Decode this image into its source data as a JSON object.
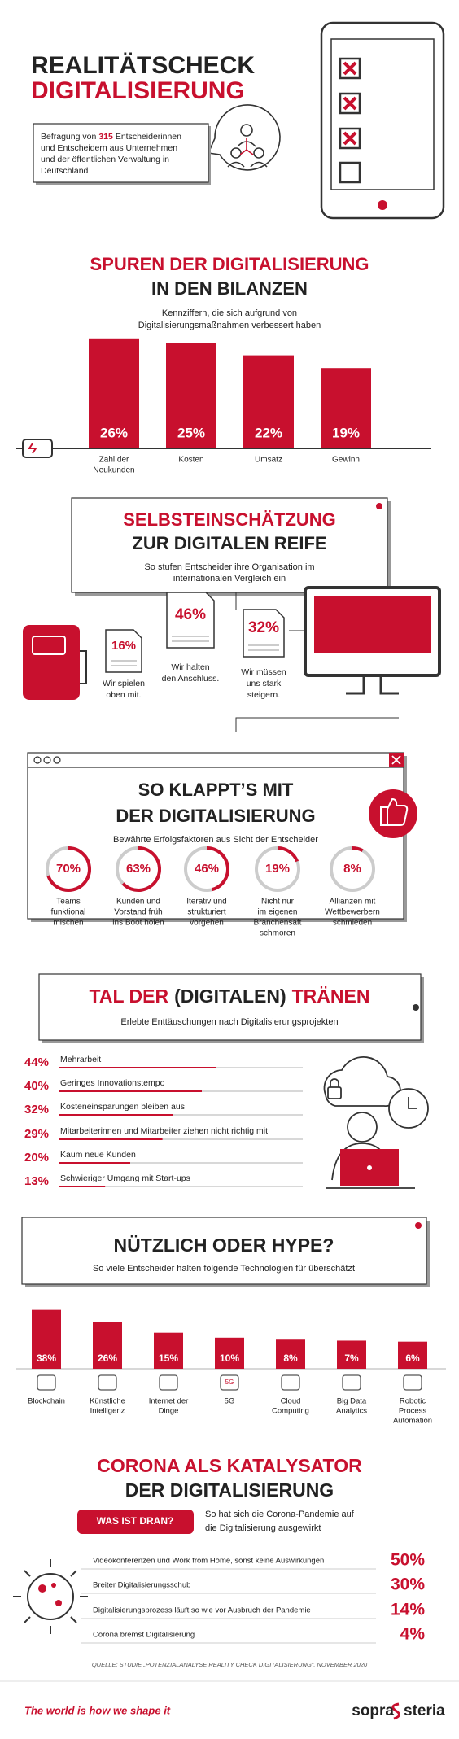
{
  "header": {
    "title_line1": "REALITÄTSCHECK",
    "title_line2": "DIGITALISIERUNG",
    "intro_start": "Befragung von",
    "intro_number": "315",
    "intro_end": "Entscheiderinnen",
    "intro_lines": [
      "und Entscheidern aus Unternehmen",
      "und der öffentlichen Verwaltung in",
      "Deutschland"
    ]
  },
  "balance": {
    "title": [
      "SPUREN DER DIGITALISIERUNG",
      "IN DEN BILANZEN"
    ],
    "subtitle": [
      "Kennziffern, die sich aufgrund von",
      "Digitalisierungsmaßnahmen verbessert haben"
    ],
    "items": [
      {
        "label": [
          "Zahl der",
          "Neukunden"
        ],
        "value": 26,
        "value_label": "26%"
      },
      {
        "label": [
          "Kosten"
        ],
        "value": 25,
        "value_label": "25%"
      },
      {
        "label": [
          "Umsatz"
        ],
        "value": 22,
        "value_label": "22%"
      },
      {
        "label": [
          "Gewinn"
        ],
        "value": 19,
        "value_label": "19%"
      }
    ]
  },
  "self_assessment": {
    "title": [
      "SELBSTEINSCHÄTZUNG",
      "ZUR DIGITALEN REIFE"
    ],
    "subtitle": [
      "So stufen Entscheider ihre Organisation im",
      "internationalen Vergleich ein"
    ],
    "items": [
      {
        "value_label": "16%",
        "caption": [
          "Wir spielen",
          "oben mit."
        ]
      },
      {
        "value_label": "46%",
        "caption": [
          "Wir halten",
          "den Anschluss."
        ]
      },
      {
        "value_label": "32%",
        "caption": [
          "Wir müssen",
          "uns stark",
          "steigern."
        ]
      }
    ]
  },
  "success": {
    "title": [
      "SO KLAPPT’S MIT",
      "DER DIGITALISIERUNG"
    ],
    "subtitle": "Bewährte Erfolgsfaktoren aus Sicht der Entscheider",
    "items": [
      {
        "value": 70,
        "value_label": "70%",
        "caption": [
          "Teams",
          "funktional",
          "mischen"
        ]
      },
      {
        "value": 63,
        "value_label": "63%",
        "caption": [
          "Kunden und",
          "Vorstand früh",
          "ins Boot holen"
        ]
      },
      {
        "value": 46,
        "value_label": "46%",
        "caption": [
          "Iterativ und",
          "strukturiert",
          "vorgehen"
        ]
      },
      {
        "value": 19,
        "value_label": "19%",
        "caption": [
          "Nicht nur",
          "im eigenen",
          "Branchensaft",
          "schmoren"
        ]
      },
      {
        "value": 8,
        "value_label": "8%",
        "caption": [
          "Allianzen mit",
          "Wettbewerbern",
          "schmieden"
        ]
      }
    ]
  },
  "tears": {
    "title_start": "TAL DER",
    "title_middle": "(DIGITALEN)",
    "title_end": "TRÄNEN",
    "subtitle": "Erlebte Enttäuschungen nach Digitalisierungsprojekten",
    "items": [
      {
        "label": "Mehrarbeit",
        "value": 44,
        "value_label": "44%"
      },
      {
        "label": "Geringes Innovationstempo",
        "value": 40,
        "value_label": "40%"
      },
      {
        "label": "Kosteneinsparungen bleiben aus",
        "value": 32,
        "value_label": "32%"
      },
      {
        "label": "Mitarbeiterinnen und Mitarbeiter ziehen nicht richtig mit",
        "value": 29,
        "value_label": "29%"
      },
      {
        "label": "Kaum neue Kunden",
        "value": 20,
        "value_label": "20%"
      },
      {
        "label": "Schwieriger Umgang mit Start-ups",
        "value": 13,
        "value_label": "13%"
      }
    ]
  },
  "hype": {
    "title": "NÜTZLICH ODER HYPE?",
    "subtitle": "So viele Entscheider halten folgende Technologien für überschätzt",
    "items": [
      {
        "label": [
          "Blockchain"
        ],
        "value": 38,
        "value_label": "38%"
      },
      {
        "label": [
          "Künstliche",
          "Intelligenz"
        ],
        "value": 26,
        "value_label": "26%"
      },
      {
        "label": [
          "Internet der",
          "Dinge"
        ],
        "value": 15,
        "value_label": "15%"
      },
      {
        "label": [
          "5G"
        ],
        "value": 10,
        "value_label": "10%",
        "icon_text": "5G"
      },
      {
        "label": [
          "Cloud",
          "Computing"
        ],
        "value": 8,
        "value_label": "8%"
      },
      {
        "label": [
          "Big Data",
          "Analytics"
        ],
        "value": 7,
        "value_label": "7%"
      },
      {
        "label": [
          "Robotic",
          "Process",
          "Automation"
        ],
        "value": 6,
        "value_label": "6%"
      }
    ]
  },
  "corona": {
    "title": [
      "CORONA ALS KATALYSATOR",
      "DER DIGITALISIERUNG"
    ],
    "badge": "WAS IST DRAN?",
    "intro": [
      "So hat sich die Corona-Pandemie auf",
      "die Digitalisierung ausgewirkt"
    ],
    "items": [
      {
        "label": "Videokonferenzen und Work from Home, sonst keine Auswirkungen",
        "value_label": "50%"
      },
      {
        "label": "Breiter Digitalisierungsschub",
        "value_label": "30%"
      },
      {
        "label": "Digitalisierungsprozess läuft so wie vor Ausbruch der Pandemie",
        "value_label": "14%"
      },
      {
        "label": "Corona bremst Digitalisierung",
        "value_label": "4%"
      }
    ]
  },
  "source": "QUELLE: STUDIE „POTENZIALANALYSE REALITY CHECK DIGITALISIERUNG“, NOVEMBER 2020",
  "footer": {
    "slogan": "The world is how we shape it",
    "logo_left": "sopra",
    "logo_right": "steria"
  }
}
